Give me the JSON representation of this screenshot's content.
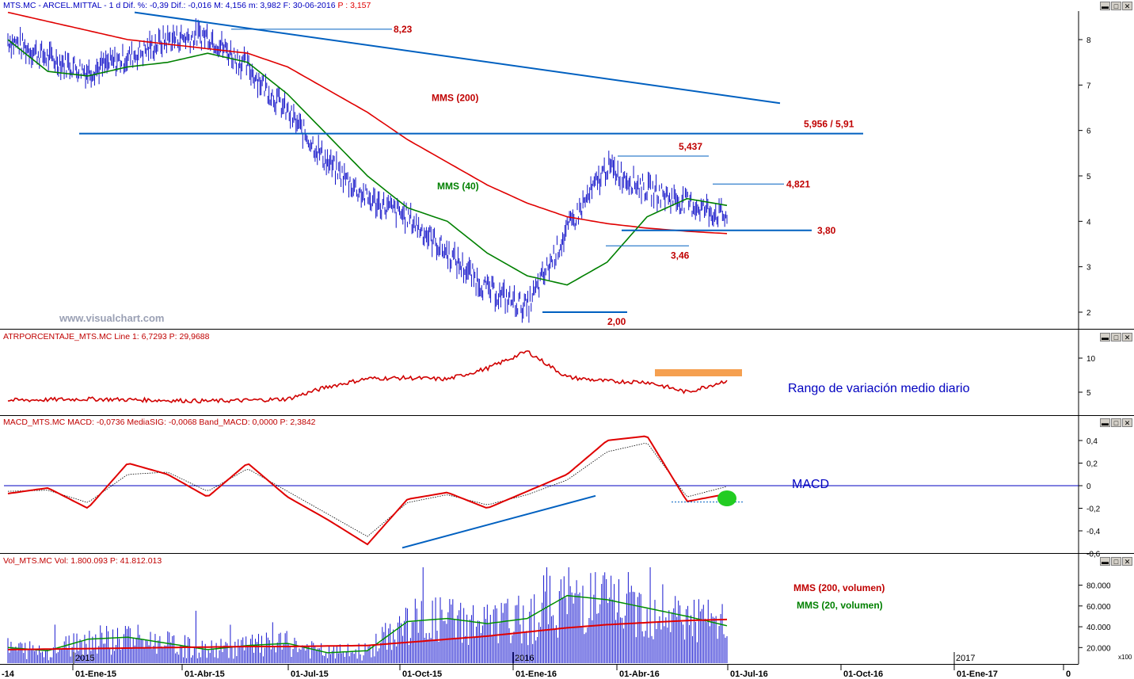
{
  "panels": {
    "price": {
      "title": "MTS.MC - ARCEL.MITTAL - 1 d Dif. %: -0,39 Dif.: -0,016 M: 4,156 m: 3,982 F: 30-06-2016",
      "title_p": "P : 3,157",
      "watermark": "www.visualchart.com",
      "labels": {
        "mms200": "MMS (200)",
        "mms40": "MMS (40)",
        "l823": "8,23",
        "l5956": "5,956 / 5,91",
        "l5437": "5,437",
        "l4821": "4,821",
        "l380": "3,80",
        "l346": "3,46",
        "l200": "2,00"
      },
      "yticks": [
        "8",
        "7",
        "6",
        "5",
        "4",
        "3",
        "2"
      ]
    },
    "atr": {
      "title": "ATRPORCENTAJE_MTS.MC Line 1: 6,7293 P: 29,9688",
      "annotation": "Rango de variación medio diario",
      "yticks": [
        "10",
        "5"
      ]
    },
    "macd": {
      "title": "MACD_MTS.MC MACD: -0,0736 MediaSIG: -0,0068 Band_MACD: 0,0000 P: 2,3842",
      "annotation": "MACD",
      "yticks": [
        "0,4",
        "0,2",
        "0",
        "-0,2",
        "-0,4",
        "-0,6"
      ]
    },
    "volume": {
      "title": "Vol_MTS.MC Vol: 1.800.093 P: 41.812.013",
      "labels": {
        "mms200": "MMS (200, volumen)",
        "mms20": "MMS (20, volumen)"
      },
      "yticks": [
        "80.000",
        "60.000",
        "40.000",
        "20.000"
      ],
      "unit": "x100",
      "year_labels": [
        "2015",
        "2016",
        "2017"
      ]
    }
  },
  "xaxis": [
    "-14",
    "01-Ene-15",
    "01-Abr-15",
    "01-Jul-15",
    "01-Oct-15",
    "01-Ene-16",
    "01-Abr-16",
    "01-Jul-16",
    "01-Oct-16",
    "01-Ene-17",
    "0"
  ],
  "colors": {
    "price": "#1010c8",
    "mms200": "#e00000",
    "mms40": "#008000",
    "trend": "#0060c0",
    "label": "#c00000"
  },
  "chart_data": [
    {
      "type": "line",
      "title": "MTS.MC - ARCEL.MITTAL - 1 d",
      "x": [
        "2014-12",
        "2015-01",
        "2015-02",
        "2015-03",
        "2015-04",
        "2015-05",
        "2015-06",
        "2015-07",
        "2015-08",
        "2015-09",
        "2015-10",
        "2015-11",
        "2015-12",
        "2016-01",
        "2016-02",
        "2016-03",
        "2016-04",
        "2016-05",
        "2016-06"
      ],
      "series": [
        {
          "name": "MMS (200)",
          "values": [
            8.6,
            8.4,
            8.2,
            8.0,
            7.9,
            7.8,
            7.7,
            7.4,
            6.9,
            6.4,
            5.8,
            5.3,
            4.8,
            4.4,
            4.1,
            3.95,
            3.85,
            3.78,
            3.73
          ]
        },
        {
          "name": "MMS (40)",
          "values": [
            8.0,
            7.3,
            7.2,
            7.4,
            7.5,
            7.7,
            7.5,
            6.8,
            5.9,
            5.0,
            4.3,
            4.0,
            3.3,
            2.8,
            2.6,
            3.1,
            4.1,
            4.5,
            4.35
          ]
        }
      ],
      "levels": [
        8.23,
        5.956,
        5.91,
        5.437,
        4.821,
        3.8,
        3.46,
        2.0
      ],
      "ylim": [
        1.7,
        8.5
      ]
    },
    {
      "type": "line",
      "title": "ATRPORCENTAJE_MTS.MC",
      "series": [
        {
          "name": "Line 1",
          "values": [
            3.8,
            3.9,
            4.0,
            3.9,
            3.8,
            3.7,
            3.8,
            4.0,
            5.8,
            7.0,
            7.1,
            6.9,
            8.5,
            11.0,
            7.2,
            6.6,
            6.5,
            5.0,
            6.7293
          ]
        }
      ],
      "ylim": [
        2,
        12
      ]
    },
    {
      "type": "line",
      "title": "MACD_MTS.MC",
      "series": [
        {
          "name": "MACD",
          "values": [
            -0.07,
            -0.02,
            -0.2,
            0.2,
            0.1,
            -0.1,
            0.2,
            -0.1,
            -0.3,
            -0.52,
            -0.12,
            -0.06,
            -0.2,
            -0.05,
            0.1,
            0.4,
            0.44,
            -0.14,
            -0.0736
          ]
        },
        {
          "name": "MediaSIG",
          "values": [
            -0.05,
            -0.04,
            -0.15,
            0.1,
            0.12,
            -0.05,
            0.15,
            -0.05,
            -0.25,
            -0.45,
            -0.15,
            -0.08,
            -0.17,
            -0.08,
            0.05,
            0.3,
            0.38,
            -0.1,
            -0.0068
          ]
        }
      ],
      "ylim": [
        -0.6,
        0.48
      ]
    },
    {
      "type": "bar",
      "title": "Vol_MTS.MC",
      "series": [
        {
          "name": "MMS (200, volumen)",
          "values": [
            18000,
            18500,
            19000,
            19500,
            20000,
            20500,
            21000,
            21000,
            21500,
            22000,
            25000,
            28000,
            31000,
            35000,
            39000,
            42000,
            44000,
            46000,
            47000
          ]
        },
        {
          "name": "MMS (20, volumen)",
          "values": [
            20000,
            17000,
            28000,
            30000,
            24000,
            18000,
            22000,
            24000,
            15000,
            17000,
            45000,
            48000,
            43000,
            48000,
            70000,
            66000,
            58000,
            50000,
            41000
          ]
        }
      ],
      "ylim": [
        5000,
        95000
      ]
    }
  ]
}
